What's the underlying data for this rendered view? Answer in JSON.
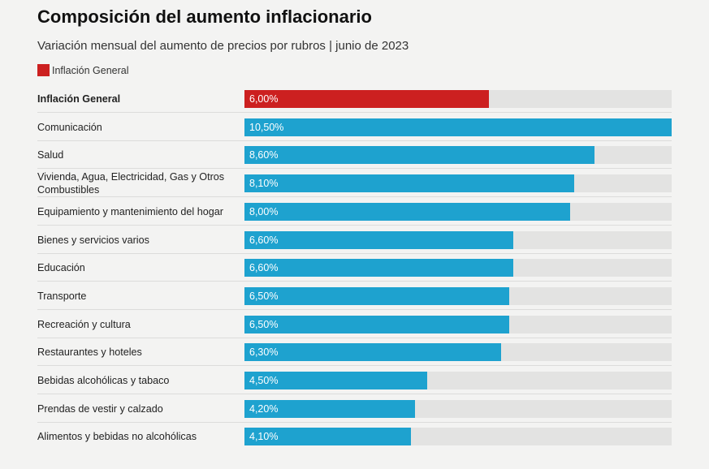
{
  "header": {
    "title": "Composición del aumento inflacionario",
    "subtitle": "Variación mensual del aumento de precios por rubros | junio de 2023"
  },
  "legend": {
    "label": "Inflación General",
    "color": "#cc2020"
  },
  "colors": {
    "highlight": "#cc2020",
    "default": "#1ea2cf",
    "track": "#e3e3e2"
  },
  "chart_data": {
    "type": "bar",
    "orientation": "horizontal",
    "title": "Composición del aumento inflacionario",
    "subtitle": "Variación mensual del aumento de precios por rubros | junio de 2023",
    "xlim": [
      0,
      10.5
    ],
    "categories": [
      "Inflación General",
      "Comunicación",
      "Salud",
      "Vivienda, Agua, Electricidad, Gas y Otros Combustibles",
      "Equipamiento y mantenimiento del hogar",
      "Bienes y servicios varios",
      "Educación",
      "Transporte",
      "Recreación y cultura",
      "Restaurantes y hoteles",
      "Bebidas alcohólicas y tabaco",
      "Prendas de vestir y calzado",
      "Alimentos y bebidas no alcohólicas"
    ],
    "values": [
      6.0,
      10.5,
      8.6,
      8.1,
      8.0,
      6.6,
      6.6,
      6.5,
      6.5,
      6.3,
      4.5,
      4.2,
      4.1
    ],
    "value_labels": [
      "6,00%",
      "10,50%",
      "8,60%",
      "8,10%",
      "8,00%",
      "6,60%",
      "6,60%",
      "6,50%",
      "6,50%",
      "6,30%",
      "4,50%",
      "4,20%",
      "4,10%"
    ],
    "highlight_index": 0
  }
}
